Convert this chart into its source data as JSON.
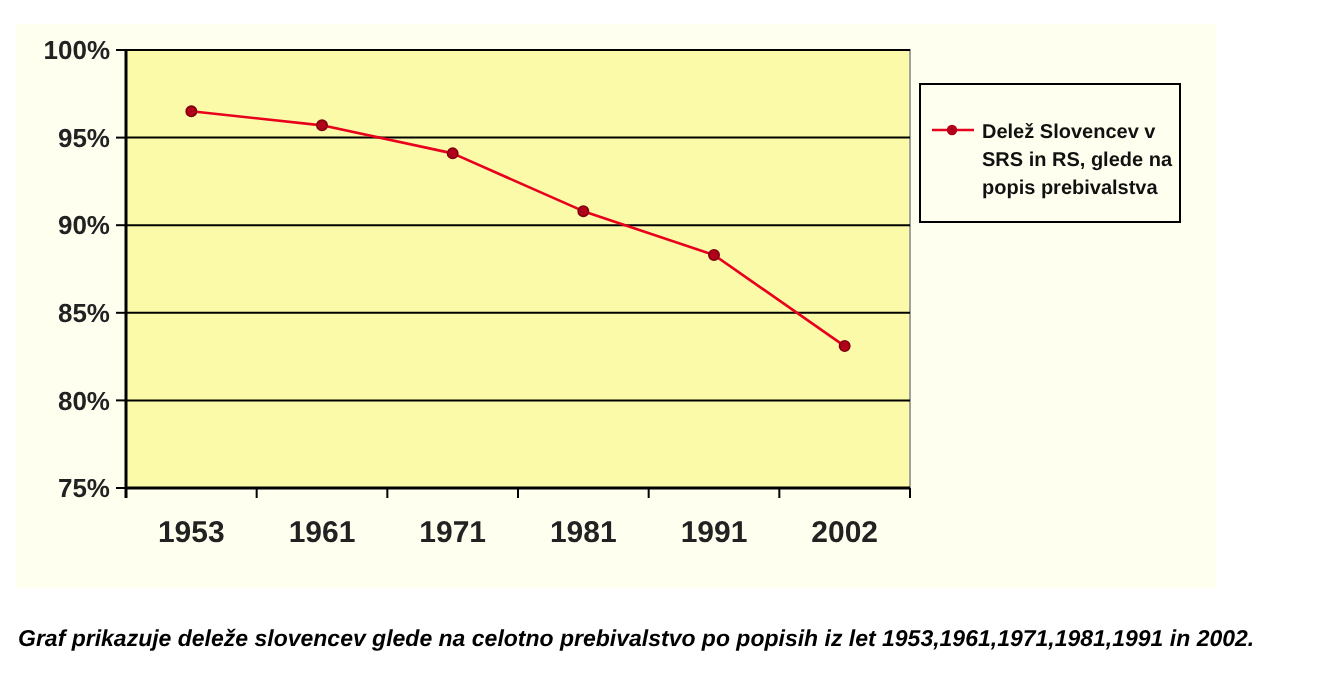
{
  "chart_data": {
    "type": "line",
    "categories": [
      "1953",
      "1961",
      "1971",
      "1981",
      "1991",
      "2002"
    ],
    "series": [
      {
        "name": "Delež Slovencev v SRS in RS, glede na popis prebivalstva",
        "color": "#e8001c",
        "values": [
          96.5,
          95.7,
          94.1,
          90.8,
          88.3,
          83.1
        ]
      }
    ],
    "ylim": [
      75,
      100
    ],
    "yticks": [
      {
        "value": 75,
        "label": "75%"
      },
      {
        "value": 80,
        "label": "80%"
      },
      {
        "value": 85,
        "label": "85%"
      },
      {
        "value": 90,
        "label": "90%"
      },
      {
        "value": 95,
        "label": "95%"
      },
      {
        "value": 100,
        "label": "100%"
      }
    ],
    "grid": "y",
    "legend": "right",
    "marker": "circle",
    "line_style": "solid",
    "annotations": [
      "Graf prikazuje deleže slovencev glede na celotno prebivalstvo po popisih iz let 1953,1961,1971,1981,1991 in 2002."
    ]
  }
}
